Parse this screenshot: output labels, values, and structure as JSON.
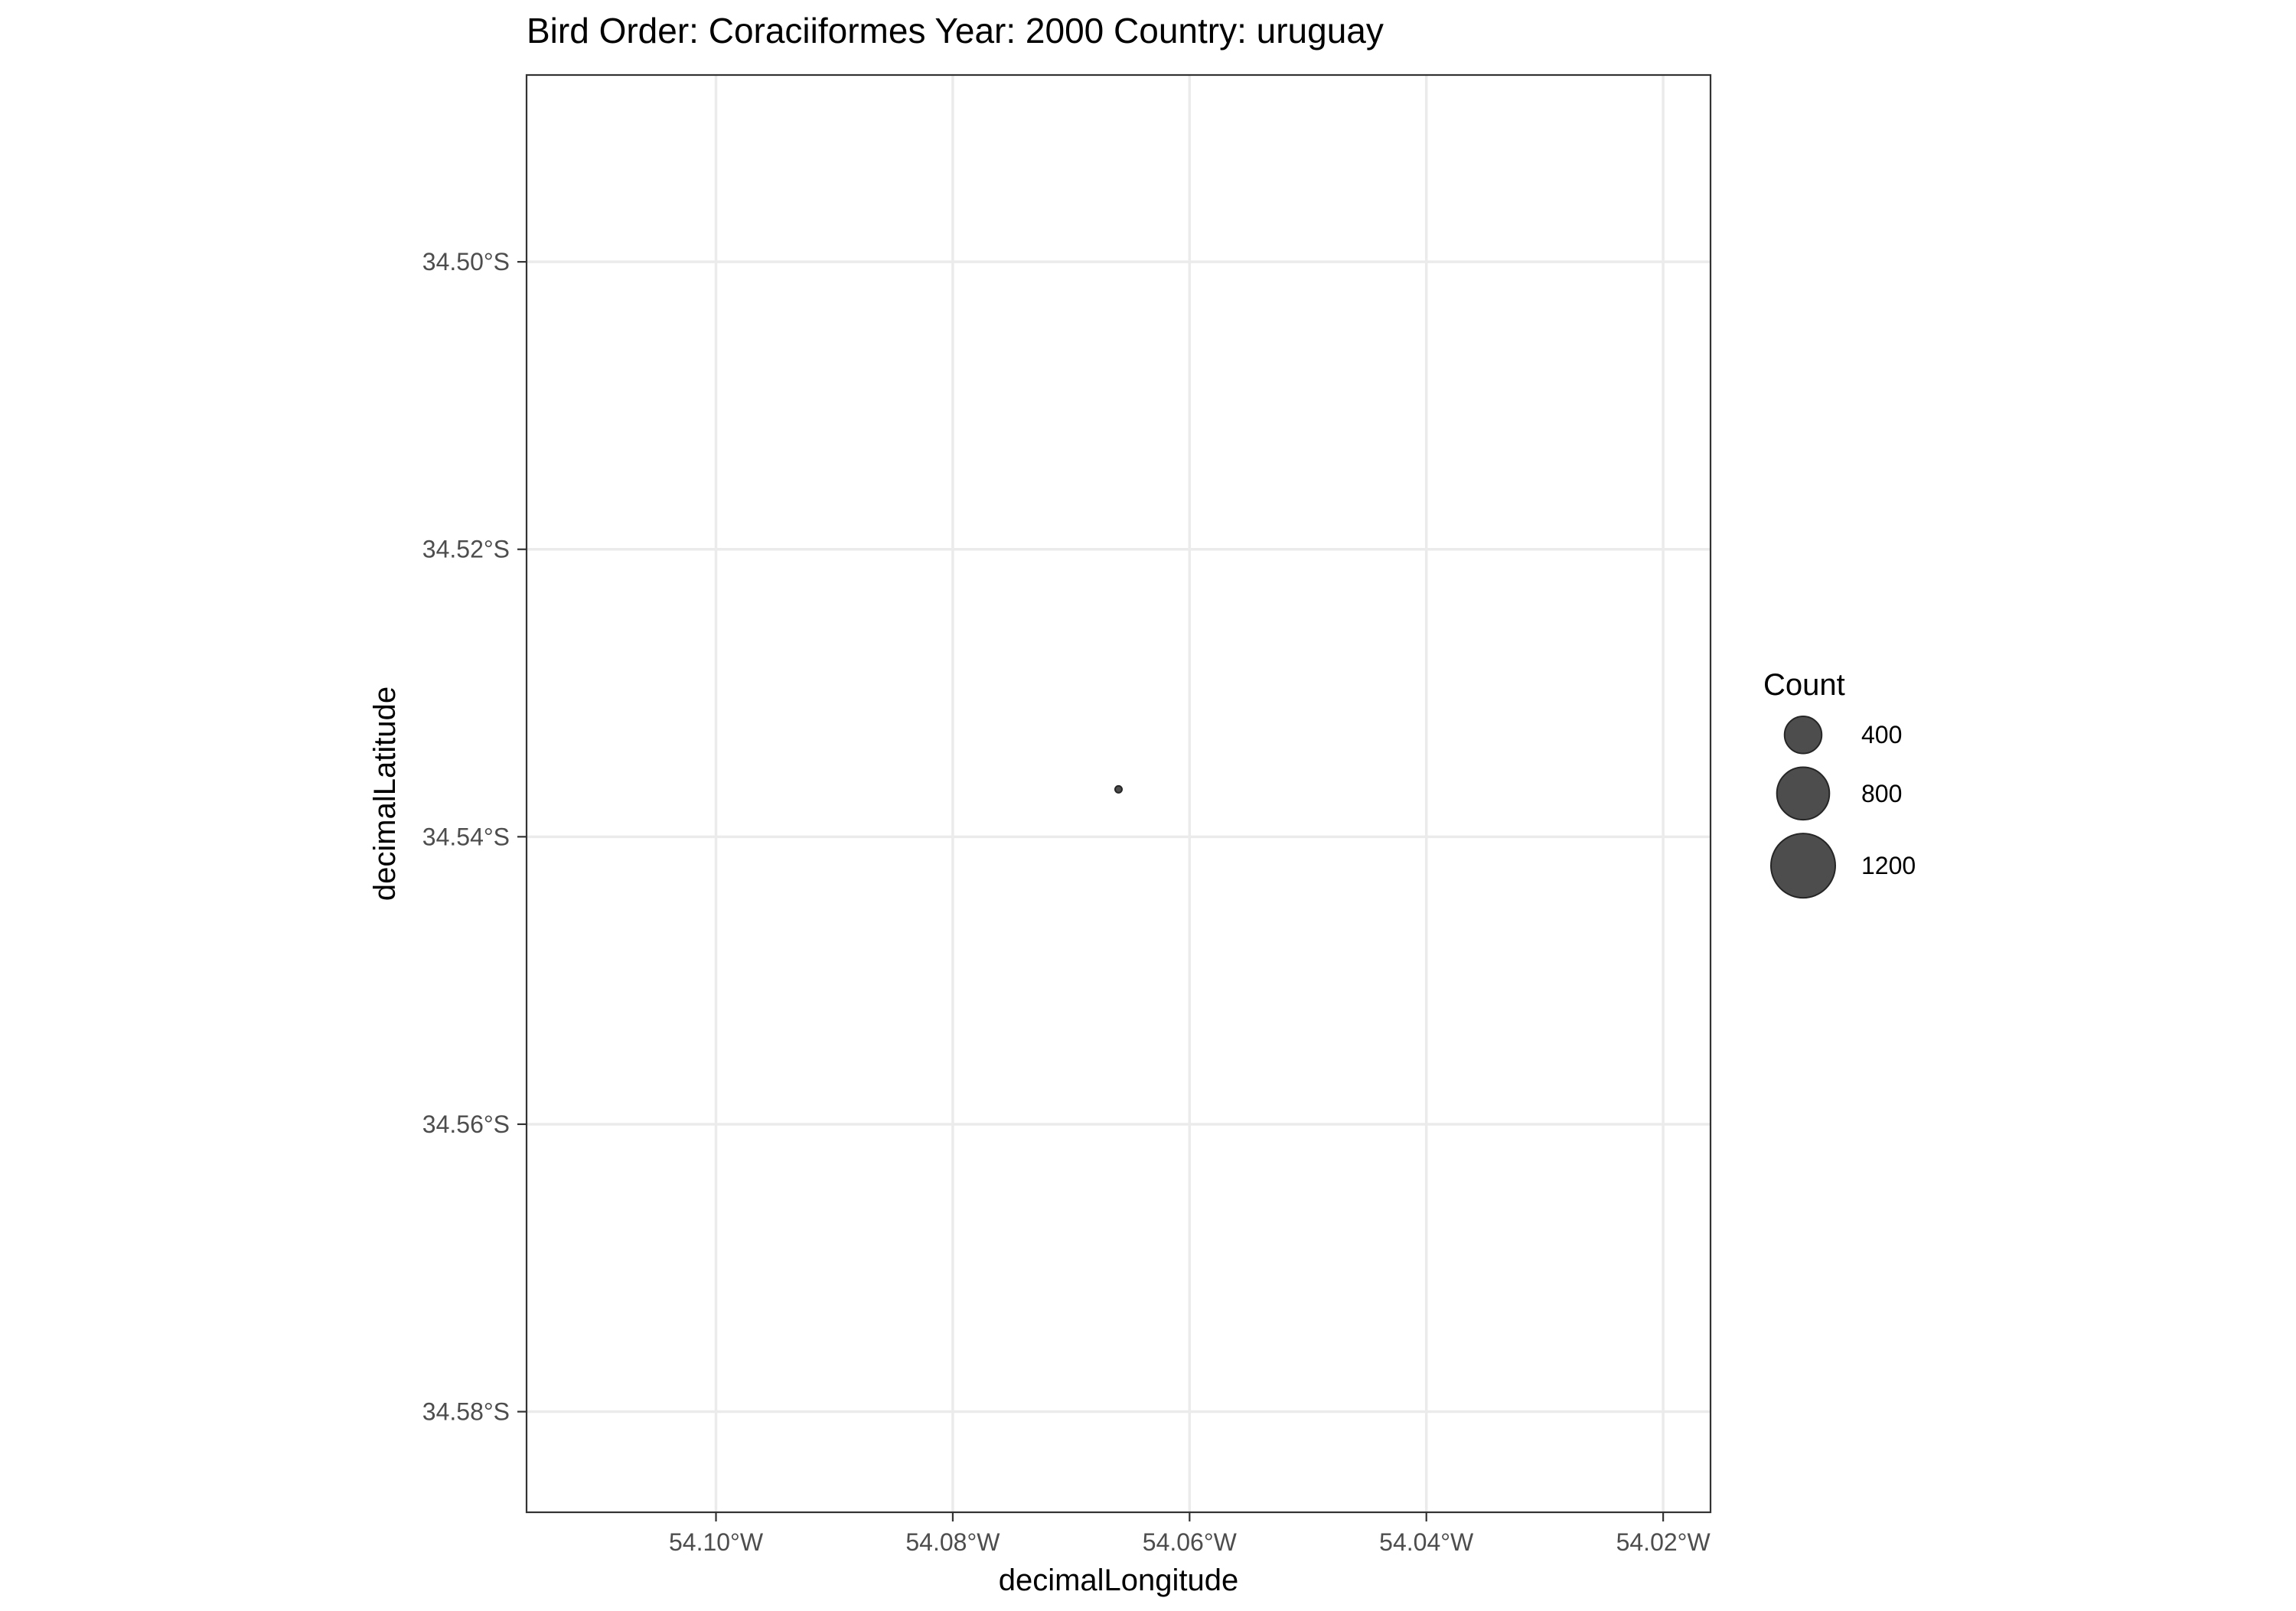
{
  "chart_data": {
    "type": "scatter",
    "title": "Bird Order: Coraciiformes Year: 2000 Country: uruguay",
    "xlabel": "decimalLongitude",
    "ylabel": "decimalLatitude",
    "xlim": [
      -54.116,
      -54.016
    ],
    "ylim": [
      -34.587,
      -34.487
    ],
    "x_ticks": [
      -54.1,
      -54.08,
      -54.06,
      -54.04,
      -54.02
    ],
    "x_tick_labels": [
      "54.10°W",
      "54.08°W",
      "54.06°W",
      "54.04°W",
      "54.02°W"
    ],
    "y_ticks": [
      -34.5,
      -34.52,
      -34.54,
      -34.56,
      -34.58
    ],
    "y_tick_labels": [
      "34.50°S",
      "34.52°S",
      "34.54°S",
      "34.56°S",
      "34.58°S"
    ],
    "grid": true,
    "points": [
      {
        "x": -54.066,
        "y": -34.5367,
        "count": 1
      }
    ],
    "legend": {
      "title": "Count",
      "position": "right",
      "entries": [
        {
          "label": "400",
          "value": 400
        },
        {
          "label": "800",
          "value": 800
        },
        {
          "label": "1200",
          "value": 1200
        }
      ]
    },
    "colors": {
      "point_fill": "#4d4d4d",
      "point_stroke": "#262626",
      "grid": "#ebebeb",
      "panel_border": "#333333",
      "tick_text": "#4d4d4d",
      "axis_title": "#000000"
    }
  }
}
